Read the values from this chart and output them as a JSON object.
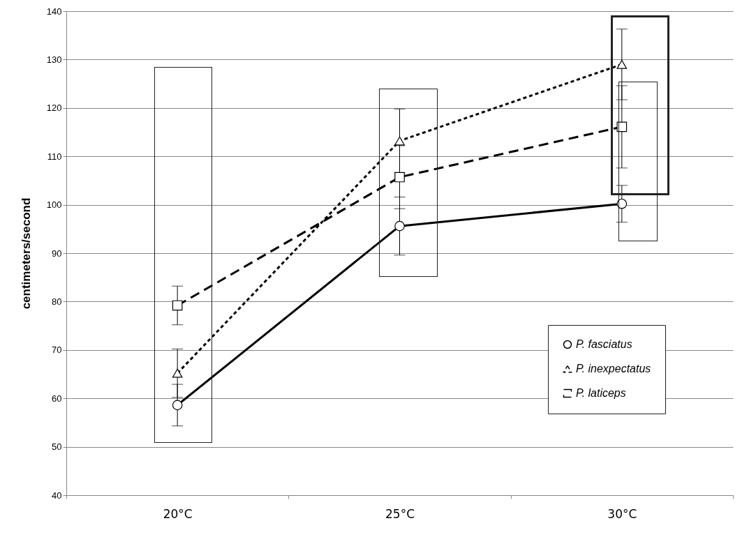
{
  "chart_data": {
    "type": "line",
    "ylabel": "centimeters/second",
    "categories": [
      "20°C",
      "25°C",
      "30°C"
    ],
    "ylim": [
      40,
      140
    ],
    "yticks": [
      40,
      50,
      60,
      70,
      80,
      90,
      100,
      110,
      120,
      130,
      140
    ],
    "grid": "y",
    "legend": "bottom right",
    "series": [
      {
        "name": "P. fasciatus",
        "color": "#000000",
        "values": [
          58.6,
          95.6,
          100.2
        ],
        "errors": [
          4.3,
          6,
          3.8
        ],
        "line_style": "solid",
        "marker": "circle"
      },
      {
        "name": "P. inexpectatus",
        "color": "#000000",
        "values": [
          65.2,
          113.2,
          129
        ],
        "errors": [
          5,
          6.6,
          7.3
        ],
        "line_style": "dotted",
        "marker": "triangle"
      },
      {
        "name": "P. laticeps",
        "color": "#000000",
        "values": [
          79.2,
          105.7,
          116.1
        ],
        "errors": [
          4,
          6.5,
          8.5
        ],
        "line_style": "dashed",
        "marker": "square"
      }
    ]
  }
}
